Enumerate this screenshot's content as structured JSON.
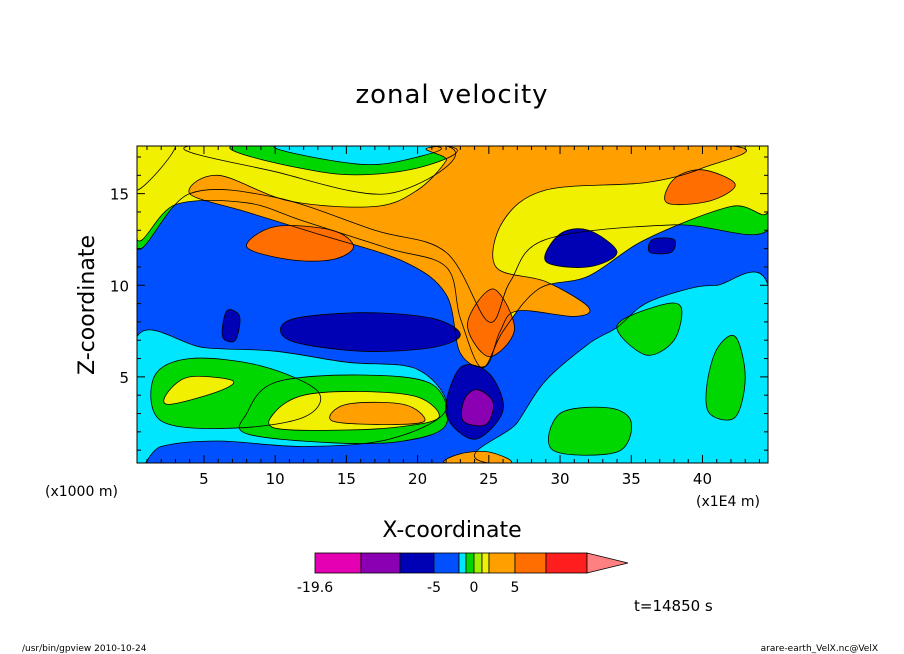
{
  "chart_data": {
    "type": "heatmap",
    "title": "zonal velocity",
    "xlabel": "X-coordinate",
    "ylabel": "Z-coordinate",
    "x_unit": "(x1E4 m)",
    "y_unit": "(x1000 m)",
    "xlim": [
      0.3,
      44.6
    ],
    "ylim": [
      0.3,
      17.6
    ],
    "x_ticks": [
      5,
      10,
      15,
      20,
      25,
      30,
      35,
      40
    ],
    "y_ticks": [
      5,
      10,
      15
    ],
    "time_label": "t=14850 s",
    "colorbar": {
      "labels": [
        {
          "text": "-19.6",
          "value": -19.6
        },
        {
          "text": "-5",
          "value": -5
        },
        {
          "text": "0",
          "value": 0
        },
        {
          "text": "5",
          "value": 5
        }
      ],
      "bins": [
        {
          "lo": -19.6,
          "hi": -15,
          "color": "#e600b4"
        },
        {
          "lo": -15,
          "hi": -10,
          "color": "#8c00b4"
        },
        {
          "lo": -10,
          "hi": -5,
          "color": "#0000b4"
        },
        {
          "lo": -5,
          "hi": -3,
          "color": "#0050ff"
        },
        {
          "lo": -3,
          "hi": -1,
          "color": "#00e6ff"
        },
        {
          "lo": -1,
          "hi": 0,
          "color": "#00d700"
        },
        {
          "lo": 0,
          "hi": 1,
          "color": "#a0f000"
        },
        {
          "lo": 1,
          "hi": 3,
          "color": "#f0f000"
        },
        {
          "lo": 3,
          "hi": 5,
          "color": "#ffa000"
        },
        {
          "lo": 5,
          "hi": 10,
          "color": "#ff6e00"
        },
        {
          "lo": 10,
          "hi": 15,
          "color": "#ff1e1e"
        },
        {
          "lo": 15,
          "hi": 20,
          "color": "#ff8080"
        }
      ]
    },
    "regions": [
      {
        "color": "#0050ff",
        "points": [
          [
            0.3,
            0.3
          ],
          [
            44.6,
            0.3
          ],
          [
            44.6,
            17.6
          ],
          [
            0.3,
            17.6
          ]
        ]
      },
      {
        "color": "#00e6ff",
        "points": [
          [
            0.3,
            0.3
          ],
          [
            0.3,
            7.2
          ],
          [
            5,
            6.6
          ],
          [
            10,
            6.4
          ],
          [
            15,
            5.8
          ],
          [
            20,
            5.4
          ],
          [
            22,
            3.2
          ],
          [
            18,
            1.6
          ],
          [
            12,
            1.2
          ],
          [
            6,
            1.5
          ],
          [
            2,
            1.2
          ]
        ]
      },
      {
        "color": "#00e6ff",
        "points": [
          [
            25,
            0.3
          ],
          [
            27,
            2.5
          ],
          [
            29,
            4.8
          ],
          [
            32,
            6.8
          ],
          [
            34,
            7.7
          ],
          [
            36,
            9
          ],
          [
            39,
            9.8
          ],
          [
            41,
            10
          ],
          [
            44.6,
            10
          ],
          [
            44.6,
            0.3
          ]
        ]
      },
      {
        "color": "#00d700",
        "points": [
          [
            2,
            2.6
          ],
          [
            7,
            2.2
          ],
          [
            12,
            2.8
          ],
          [
            13,
            4.2
          ],
          [
            9,
            5.6
          ],
          [
            4,
            6
          ],
          [
            1.5,
            5
          ]
        ]
      },
      {
        "color": "#00d700",
        "points": [
          [
            8,
            1.9
          ],
          [
            14,
            1.4
          ],
          [
            19,
            1.5
          ],
          [
            22,
            2.4
          ],
          [
            21,
            4.6
          ],
          [
            16,
            5.1
          ],
          [
            10,
            4.7
          ],
          [
            8,
            3
          ]
        ]
      },
      {
        "color": "#00d700",
        "points": [
          [
            34,
            7.8
          ],
          [
            37,
            8.9
          ],
          [
            38.5,
            8.8
          ],
          [
            38,
            7
          ],
          [
            36,
            6.2
          ]
        ]
      },
      {
        "color": "#00d700",
        "points": [
          [
            40.5,
            3
          ],
          [
            42.3,
            2.8
          ],
          [
            43,
            5
          ],
          [
            42.3,
            7.2
          ],
          [
            41,
            6.5
          ],
          [
            40.3,
            4.5
          ]
        ]
      },
      {
        "color": "#00d700",
        "points": [
          [
            29.5,
            1
          ],
          [
            34,
            0.9
          ],
          [
            35,
            2.5
          ],
          [
            33.5,
            3.3
          ],
          [
            30,
            3
          ]
        ]
      },
      {
        "color": "#00d700",
        "points": [
          [
            0.3,
            12
          ],
          [
            4,
            15
          ],
          [
            10,
            14.8
          ],
          [
            17,
            13
          ],
          [
            22,
            11.8
          ],
          [
            25,
            8
          ],
          [
            26.5,
            10.2
          ],
          [
            29,
            12.5
          ],
          [
            38,
            13.3
          ],
          [
            44.6,
            13
          ],
          [
            44.6,
            17.6
          ],
          [
            0.3,
            17.6
          ]
        ]
      },
      {
        "color": "#00e6ff",
        "points": [
          [
            0.3,
            15.2
          ],
          [
            3,
            17.6
          ],
          [
            0.3,
            17.6
          ]
        ]
      },
      {
        "color": "#00e6ff",
        "points": [
          [
            4,
            17.6
          ],
          [
            10,
            16.2
          ],
          [
            18,
            15
          ],
          [
            22,
            17.6
          ]
        ]
      },
      {
        "color": "#f0f000",
        "points": [
          [
            2.5,
            3.5
          ],
          [
            6,
            4.2
          ],
          [
            7,
            4.8
          ],
          [
            4,
            5
          ],
          [
            2.5,
            4.2
          ]
        ]
      },
      {
        "color": "#f0f000",
        "points": [
          [
            10,
            2.2
          ],
          [
            15,
            2.1
          ],
          [
            19,
            2.3
          ],
          [
            21.5,
            2.8
          ],
          [
            20,
            3.9
          ],
          [
            16,
            4.2
          ],
          [
            12,
            4
          ],
          [
            10,
            3.1
          ]
        ]
      },
      {
        "color": "#ffa000",
        "points": [
          [
            14,
            2.6
          ],
          [
            18,
            2.4
          ],
          [
            20.5,
            2.6
          ],
          [
            19,
            3.5
          ],
          [
            15,
            3.5
          ]
        ]
      },
      {
        "color": "#f0f000",
        "points": [
          [
            0.3,
            12.5
          ],
          [
            3,
            14.4
          ],
          [
            8,
            14.5
          ],
          [
            12,
            13.5
          ],
          [
            18,
            12
          ],
          [
            22,
            11
          ],
          [
            23,
            8.2
          ],
          [
            24.5,
            5.5
          ],
          [
            26,
            7.5
          ],
          [
            28.5,
            9.8
          ],
          [
            32,
            10.5
          ],
          [
            36,
            12.5
          ],
          [
            42,
            14.3
          ],
          [
            44.6,
            14
          ],
          [
            44.6,
            17.6
          ],
          [
            0.3,
            17.6
          ]
        ]
      },
      {
        "color": "#00d700",
        "points": [
          [
            7,
            17.6
          ],
          [
            14,
            16.1
          ],
          [
            20,
            16.4
          ],
          [
            22,
            17.6
          ]
        ]
      },
      {
        "color": "#00e6ff",
        "points": [
          [
            10,
            17.6
          ],
          [
            16,
            16.6
          ],
          [
            20,
            17
          ],
          [
            21,
            17.6
          ]
        ]
      },
      {
        "color": "#ffa000",
        "points": [
          [
            4,
            15
          ],
          [
            8,
            14
          ],
          [
            13,
            12.8
          ],
          [
            19,
            11.3
          ],
          [
            22,
            9.5
          ],
          [
            23,
            6.3
          ],
          [
            24.8,
            5.6
          ],
          [
            25.8,
            7.5
          ],
          [
            27,
            8.6
          ],
          [
            31,
            8.3
          ],
          [
            32,
            8.8
          ],
          [
            29,
            10.2
          ],
          [
            25.5,
            11
          ],
          [
            26,
            13.5
          ],
          [
            29,
            15.2
          ],
          [
            36,
            15.6
          ],
          [
            40,
            16.4
          ],
          [
            42,
            17.6
          ],
          [
            22,
            17.6
          ],
          [
            22,
            16.8
          ],
          [
            20,
            15.2
          ],
          [
            17,
            14.3
          ],
          [
            11,
            14.6
          ],
          [
            6,
            16
          ]
        ]
      },
      {
        "color": "#ff6e00",
        "points": [
          [
            8,
            12.1
          ],
          [
            11,
            11.4
          ],
          [
            14,
            11.4
          ],
          [
            15.5,
            12.1
          ],
          [
            14,
            13
          ],
          [
            10,
            13.2
          ]
        ]
      },
      {
        "color": "#ff6e00",
        "points": [
          [
            23.5,
            7.9
          ],
          [
            25,
            6.1
          ],
          [
            26.8,
            7.6
          ],
          [
            25.3,
            9.8
          ]
        ]
      },
      {
        "color": "#ff6e00",
        "points": [
          [
            37.5,
            14.5
          ],
          [
            40.5,
            14.6
          ],
          [
            42.3,
            15.5
          ],
          [
            40,
            16.3
          ],
          [
            38,
            15.8
          ]
        ]
      },
      {
        "color": "#ffa000",
        "points": [
          [
            22,
            0.3
          ],
          [
            26.5,
            0.3
          ],
          [
            25,
            0.9
          ],
          [
            23,
            0.8
          ]
        ]
      },
      {
        "color": "#0000b4",
        "points": [
          [
            11,
            7
          ],
          [
            16,
            6.4
          ],
          [
            21,
            6.6
          ],
          [
            23,
            7.3
          ],
          [
            21,
            8.2
          ],
          [
            16,
            8.5
          ],
          [
            11,
            8.1
          ]
        ]
      },
      {
        "color": "#0000b4",
        "points": [
          [
            6.3,
            7.2
          ],
          [
            7.2,
            7
          ],
          [
            7.5,
            8.3
          ],
          [
            6.6,
            8.6
          ]
        ]
      },
      {
        "color": "#0000b4",
        "points": [
          [
            22,
            3
          ],
          [
            24,
            1.6
          ],
          [
            26,
            3.2
          ],
          [
            25,
            5.2
          ],
          [
            23,
            5.5
          ]
        ]
      },
      {
        "color": "#0000b4",
        "points": [
          [
            29,
            11.3
          ],
          [
            32,
            11
          ],
          [
            34,
            11.8
          ],
          [
            32,
            13
          ],
          [
            30,
            12.8
          ]
        ]
      },
      {
        "color": "#0000b4",
        "points": [
          [
            36.3,
            11.8
          ],
          [
            37.8,
            11.8
          ],
          [
            38,
            12.5
          ],
          [
            36.5,
            12.5
          ]
        ]
      },
      {
        "color": "#8c00b4",
        "points": [
          [
            23.2,
            2.6
          ],
          [
            24.8,
            2.4
          ],
          [
            25.3,
            3.6
          ],
          [
            24.2,
            4.3
          ],
          [
            23.3,
            3.8
          ]
        ]
      }
    ]
  },
  "footer": {
    "left": "/usr/bin/gpview  2010-10-24",
    "right": "arare-earth_VelX.nc@VelX"
  }
}
